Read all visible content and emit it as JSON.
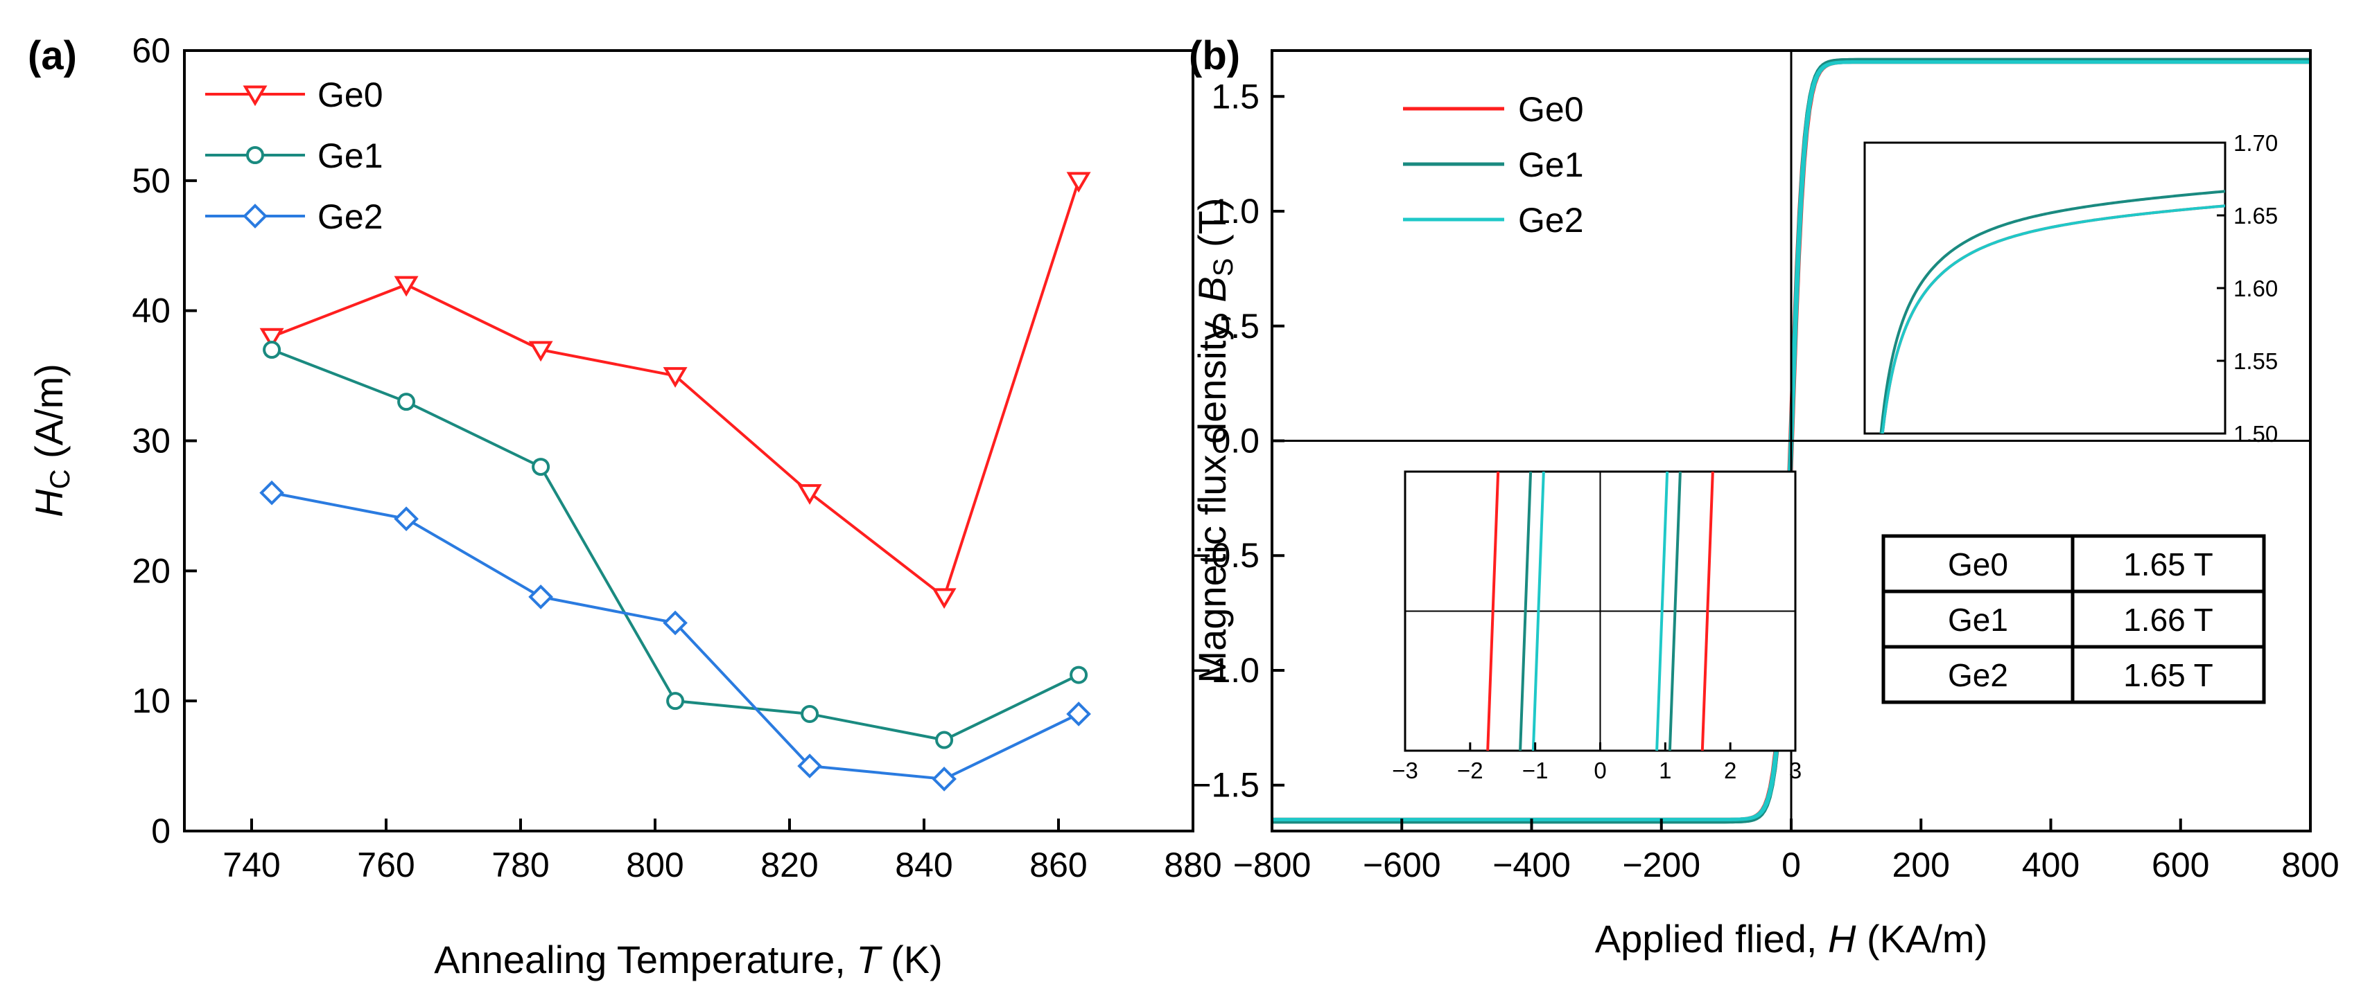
{
  "colors": {
    "Ge0": "#ff1f1f",
    "Ge1": "#1a8a80",
    "Ge2": "#2a7be0",
    "Ge2_loop": "#1fc8c8",
    "axis": "#000000"
  },
  "chart_data": [
    {
      "type": "line",
      "panel_label": "(a)",
      "xlabel": {
        "prefix": "Annealing Temperature, ",
        "var": "T",
        "suffix": " (K)"
      },
      "ylabel": {
        "var": "H",
        "sub": "C",
        "suffix": " (A/m)"
      },
      "xlim": [
        730,
        880
      ],
      "ylim": [
        0,
        60
      ],
      "xticks": [
        740,
        760,
        780,
        800,
        820,
        840,
        860,
        880
      ],
      "yticks": [
        0,
        10,
        20,
        30,
        40,
        50,
        60
      ],
      "x": [
        743,
        763,
        783,
        803,
        823,
        843,
        863
      ],
      "series": [
        {
          "name": "Ge0",
          "marker": "triangle-down",
          "values": [
            38,
            42,
            37,
            35,
            26,
            18,
            50
          ]
        },
        {
          "name": "Ge1",
          "marker": "circle",
          "values": [
            37,
            33,
            28,
            10,
            9,
            7,
            12
          ]
        },
        {
          "name": "Ge2",
          "marker": "diamond",
          "values": [
            26,
            24,
            18,
            16,
            5,
            4,
            9
          ]
        }
      ],
      "legend": [
        "Ge0",
        "Ge1",
        "Ge2"
      ]
    },
    {
      "type": "line",
      "panel_label": "(b)",
      "xlabel": {
        "prefix": "Applied flied, ",
        "var": "H",
        "suffix": " (KA/m)"
      },
      "ylabel": {
        "prefix": "Magnetic flux density, ",
        "var": "B",
        "sub": "S",
        "suffix": " (T)"
      },
      "xlim": [
        -800,
        800
      ],
      "ylim": [
        -1.7,
        1.7
      ],
      "xticks": [
        -800,
        -600,
        -400,
        -200,
        0,
        200,
        400,
        600,
        800
      ],
      "xtick_labels": [
        "−800",
        "−600",
        "−400",
        "−200",
        "0",
        "200",
        "400",
        "600",
        "800"
      ],
      "yticks": [
        -1.5,
        -1.0,
        -0.5,
        0.0,
        0.5,
        1.0,
        1.5
      ],
      "ytick_labels": [
        "−1.5",
        "−1.0",
        "−0.5",
        "0.0",
        "0.5",
        "1.0",
        "1.5"
      ],
      "series": [
        {
          "name": "Ge0",
          "saturation": 1.65,
          "coercivity": 1.65
        },
        {
          "name": "Ge1",
          "saturation": 1.66,
          "coercivity": 1.15
        },
        {
          "name": "Ge2",
          "saturation": 1.65,
          "coercivity": 0.95
        }
      ],
      "legend": [
        "Ge0",
        "Ge1",
        "Ge2"
      ],
      "inset_top": {
        "xlim": [
          0,
          800
        ],
        "ylim": [
          1.5,
          1.7
        ],
        "yticks": [
          1.5,
          1.55,
          1.6,
          1.65,
          1.7
        ],
        "ytick_labels": [
          "1.50",
          "1.55",
          "1.60",
          "1.65",
          "1.70"
        ]
      },
      "inset_bottom": {
        "xlim": [
          -3,
          3
        ],
        "xticks": [
          -3,
          -2,
          -1,
          0,
          1,
          2,
          3
        ],
        "xtick_labels": [
          "−3",
          "−2",
          "−1",
          "0",
          "1",
          "2",
          "3"
        ]
      },
      "table": [
        {
          "sample": "Ge0",
          "value": "1.65 T"
        },
        {
          "sample": "Ge1",
          "value": "1.66 T"
        },
        {
          "sample": "Ge2",
          "value": "1.65 T"
        }
      ]
    }
  ]
}
